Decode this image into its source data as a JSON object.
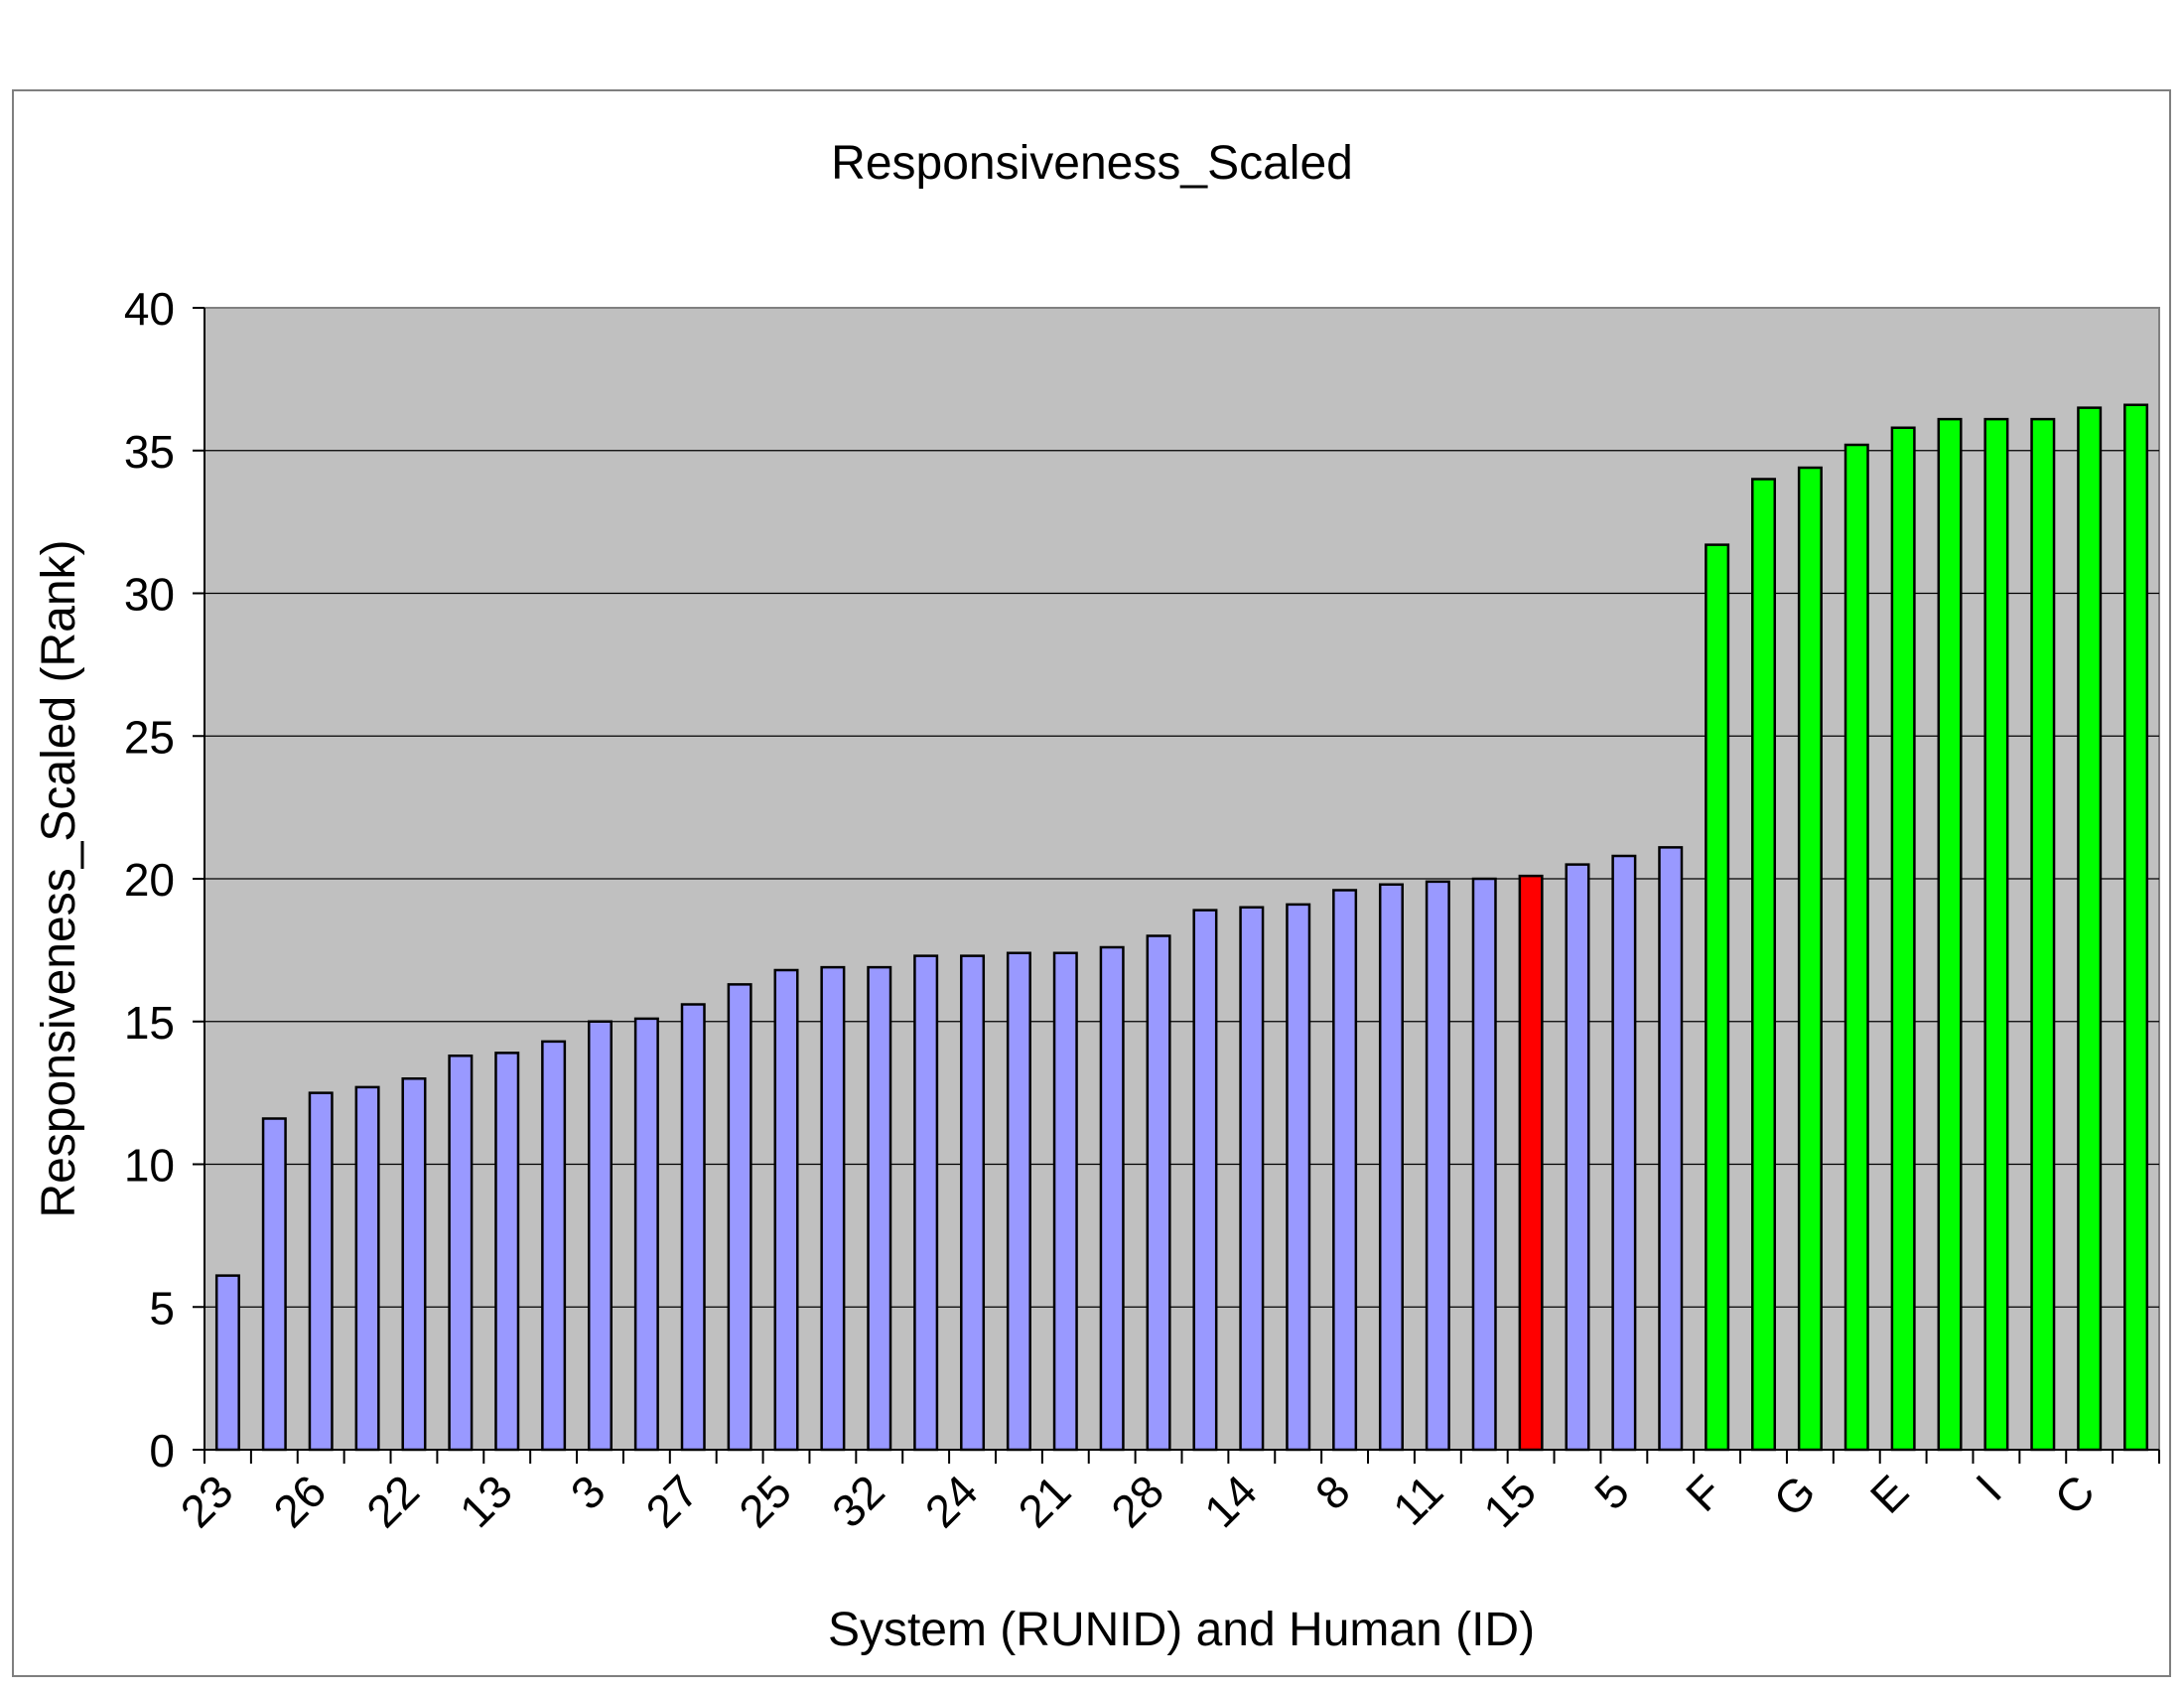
{
  "chart_data": {
    "type": "bar",
    "title": "Responsiveness_Scaled",
    "xlabel": "System (RUNID) and Human (ID)",
    "ylabel": "Responsiveness_Scaled (Rank)",
    "ylim": [
      0,
      40
    ],
    "yticks": [
      0,
      5,
      10,
      15,
      20,
      25,
      30,
      35,
      40
    ],
    "grid": true,
    "legend": "none",
    "colors": {
      "system": "#9999ff",
      "highlight": "#ff0000",
      "human": "#00ff00",
      "plot_background": "#c0c0c0",
      "bar_outline": "#000000"
    },
    "categories": [
      "23",
      "",
      "26",
      "",
      "22",
      "",
      "13",
      "",
      "3",
      "",
      "27",
      "",
      "25",
      "",
      "32",
      "",
      "24",
      "",
      "21",
      "",
      "28",
      "",
      "14",
      "",
      "8",
      "",
      "11",
      "",
      "15",
      "",
      "5",
      "",
      "F",
      "",
      "G",
      "",
      "E",
      "",
      "I",
      "",
      "C",
      ""
    ],
    "values": [
      6.1,
      11.6,
      12.5,
      12.7,
      13.0,
      13.8,
      13.9,
      14.3,
      15.0,
      15.1,
      15.6,
      16.3,
      16.8,
      16.9,
      16.9,
      17.3,
      17.3,
      17.4,
      17.4,
      17.6,
      18.0,
      18.9,
      19.0,
      19.1,
      19.6,
      19.8,
      19.9,
      20.0,
      20.1,
      20.5,
      20.8,
      21.1,
      31.7,
      34.0,
      34.4,
      35.2,
      35.8,
      36.1,
      36.1,
      36.1,
      36.5,
      36.6
    ],
    "bar_groups": [
      "system",
      "system",
      "system",
      "system",
      "system",
      "system",
      "system",
      "system",
      "system",
      "system",
      "system",
      "system",
      "system",
      "system",
      "system",
      "system",
      "system",
      "system",
      "system",
      "system",
      "system",
      "system",
      "system",
      "system",
      "system",
      "system",
      "system",
      "system",
      "highlight",
      "system",
      "system",
      "system",
      "human",
      "human",
      "human",
      "human",
      "human",
      "human",
      "human",
      "human",
      "human",
      "human"
    ]
  }
}
